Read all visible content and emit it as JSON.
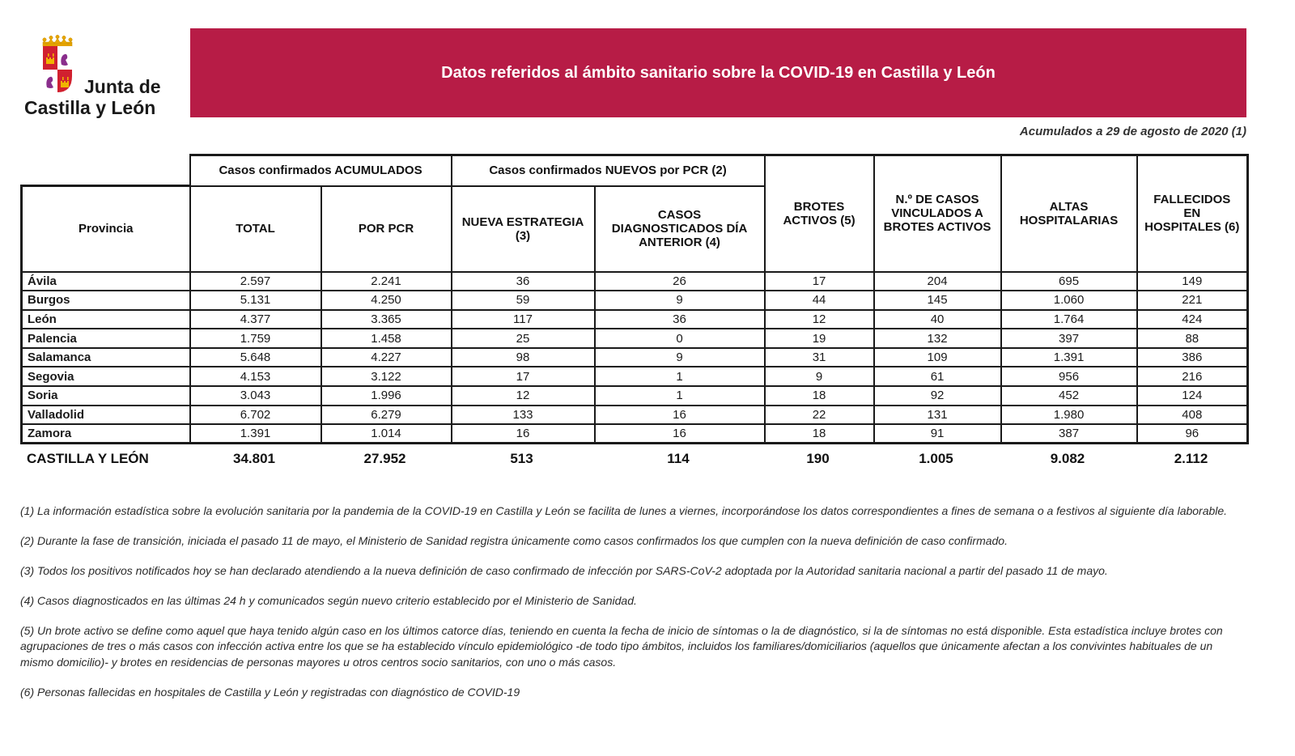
{
  "logo": {
    "line1": "Junta de",
    "line2": "Castilla y León"
  },
  "banner": {
    "title": "Datos referidos al ámbito sanitario sobre la COVID-19 en Castilla y León",
    "bg_color": "#B71C46"
  },
  "date_note": "Acumulados a 29 de agosto de 2020 (1)",
  "table": {
    "group_headers": [
      "Casos confirmados ACUMULADOS",
      "Casos confirmados NUEVOS por PCR (2)"
    ],
    "col_headers": [
      "Provincia",
      "TOTAL",
      "POR PCR",
      "NUEVA ESTRATEGIA (3)",
      "CASOS DIAGNOSTICADOS DÍA ANTERIOR (4)",
      "BROTES ACTIVOS (5)",
      "N.º DE CASOS VINCULADOS A BROTES ACTIVOS",
      "ALTAS HOSPITALARIAS",
      "FALLECIDOS EN HOSPITALES (6)"
    ],
    "rows": [
      {
        "name": "Ávila",
        "values": [
          "2.597",
          "2.241",
          "36",
          "26",
          "17",
          "204",
          "695",
          "149"
        ]
      },
      {
        "name": "Burgos",
        "values": [
          "5.131",
          "4.250",
          "59",
          "9",
          "44",
          "145",
          "1.060",
          "221"
        ]
      },
      {
        "name": "León",
        "values": [
          "4.377",
          "3.365",
          "117",
          "36",
          "12",
          "40",
          "1.764",
          "424"
        ]
      },
      {
        "name": "Palencia",
        "values": [
          "1.759",
          "1.458",
          "25",
          "0",
          "19",
          "132",
          "397",
          "88"
        ]
      },
      {
        "name": "Salamanca",
        "values": [
          "5.648",
          "4.227",
          "98",
          "9",
          "31",
          "109",
          "1.391",
          "386"
        ]
      },
      {
        "name": "Segovia",
        "values": [
          "4.153",
          "3.122",
          "17",
          "1",
          "9",
          "61",
          "956",
          "216"
        ]
      },
      {
        "name": "Soria",
        "values": [
          "3.043",
          "1.996",
          "12",
          "1",
          "18",
          "92",
          "452",
          "124"
        ]
      },
      {
        "name": "Valladolid",
        "values": [
          "6.702",
          "6.279",
          "133",
          "16",
          "22",
          "131",
          "1.980",
          "408"
        ]
      },
      {
        "name": "Zamora",
        "values": [
          "1.391",
          "1.014",
          "16",
          "16",
          "18",
          "91",
          "387",
          "96"
        ]
      }
    ],
    "total_row": {
      "name": "CASTILLA Y LEÓN",
      "values": [
        "34.801",
        "27.952",
        "513",
        "114",
        "190",
        "1.005",
        "9.082",
        "2.112"
      ]
    }
  },
  "footnotes": [
    "(1) La información estadística sobre la evolución sanitaria por la pandemia de la COVID-19 en Castilla y León se facilita de lunes a viernes, incorporándose los datos correspondientes a fines de semana o a festivos al siguiente día laborable.",
    "(2) Durante la fase de transición, iniciada el pasado 11 de mayo, el Ministerio de Sanidad registra únicamente como casos confirmados los que cumplen con la nueva definición de caso confirmado.",
    "(3) Todos los positivos notificados hoy se han declarado atendiendo a la nueva definición de caso confirmado de infección por SARS-CoV-2 adoptada por la Autoridad sanitaria nacional a partir del pasado 11 de mayo.",
    "(4) Casos diagnosticados en las últimas 24 h y comunicados según nuevo criterio establecido por el Ministerio de Sanidad.",
    "(5) Un brote activo se define como aquel que haya tenido algún caso en los últimos catorce días, teniendo en cuenta la fecha de inicio de síntomas o la de diagnóstico, si la de síntomas no está disponible. Esta estadística incluye brotes con agrupaciones de tres o más casos con infección activa entre los que se ha establecido vínculo epidemiológico -de todo tipo ámbitos, incluidos los familiares/domiciliarios (aquellos que únicamente afectan a los convivintes habituales de un mismo domicilio)- y brotes en residencias de personas mayores u otros centros socio sanitarios, con uno o más casos.",
    "(6) Personas fallecidas en hospitales de Castilla y León y registradas con diagnóstico de COVID-19"
  ]
}
